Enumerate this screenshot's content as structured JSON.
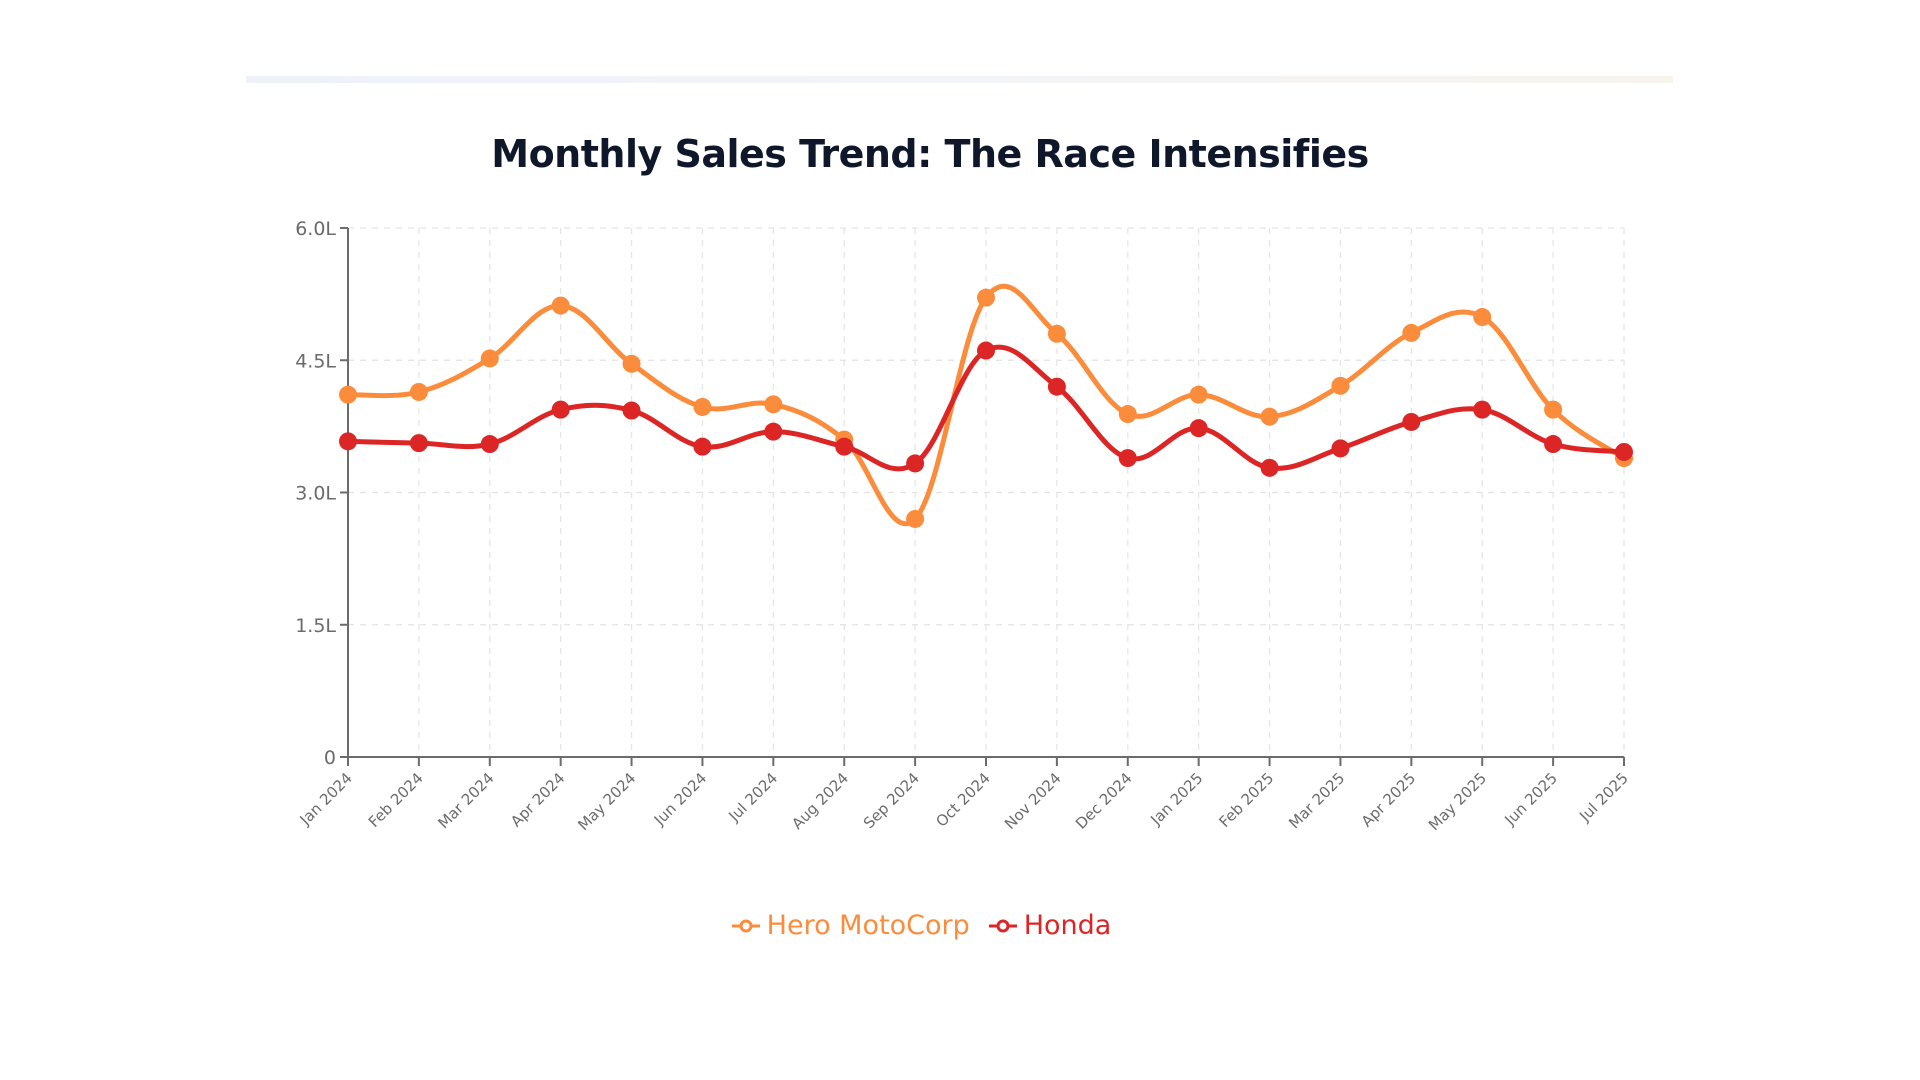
{
  "chart_data": {
    "type": "line",
    "title": "Monthly Sales Trend: The Race Intensifies",
    "xlabel": "",
    "ylabel": "",
    "ylim": [
      0,
      6.0
    ],
    "y_unit": "Lakh units",
    "y_ticks": [
      {
        "value": 0,
        "label": "0"
      },
      {
        "value": 1.5,
        "label": "1.5L"
      },
      {
        "value": 3.0,
        "label": "3.0L"
      },
      {
        "value": 4.5,
        "label": "4.5L"
      },
      {
        "value": 6.0,
        "label": "6.0L"
      }
    ],
    "grid": true,
    "curve": "smooth",
    "legend_position": "bottom-center",
    "categories": [
      "Jan 2024",
      "Feb 2024",
      "Mar 2024",
      "Apr 2024",
      "May 2024",
      "Jun 2024",
      "Jul 2024",
      "Aug 2024",
      "Sep 2024",
      "Oct 2024",
      "Nov 2024",
      "Dec 2024",
      "Jan 2025",
      "Feb 2025",
      "Mar 2025",
      "Apr 2025",
      "May 2025",
      "Jun 2025",
      "Jul 2025"
    ],
    "series": [
      {
        "name": "Hero MotoCorp",
        "color": "#fb8c3c",
        "values": [
          4.11,
          4.14,
          4.52,
          5.12,
          4.46,
          3.97,
          4.0,
          3.6,
          2.7,
          5.21,
          4.8,
          3.89,
          4.11,
          3.86,
          4.21,
          4.81,
          4.99,
          3.94,
          3.39
        ]
      },
      {
        "name": "Honda",
        "color": "#dc2626",
        "values": [
          3.58,
          3.56,
          3.55,
          3.94,
          3.93,
          3.52,
          3.69,
          3.52,
          3.33,
          4.61,
          4.2,
          3.39,
          3.73,
          3.28,
          3.5,
          3.8,
          3.94,
          3.55,
          3.46
        ]
      }
    ]
  },
  "legend": {
    "items": [
      {
        "label": "Hero MotoCorp",
        "color": "#fb8c3c",
        "icon": "line-circle-icon"
      },
      {
        "label": "Honda",
        "color": "#dc2626",
        "icon": "line-circle-icon"
      }
    ]
  }
}
